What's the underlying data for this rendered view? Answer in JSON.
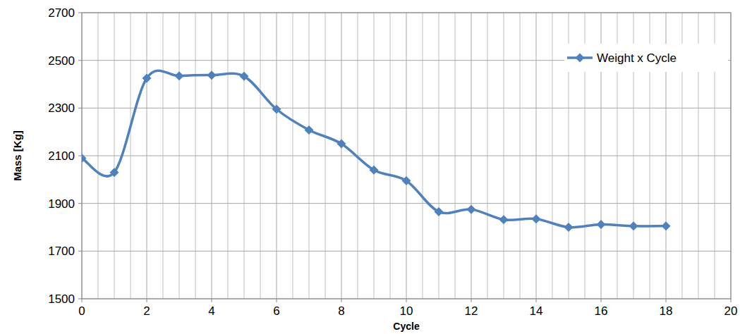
{
  "chart_data": {
    "type": "line",
    "x_label": "Cycle",
    "y_label": "Mass [Kg]",
    "x": [
      0,
      1,
      2,
      3,
      4,
      5,
      6,
      7,
      8,
      9,
      10,
      11,
      12,
      13,
      14,
      15,
      16,
      17,
      18
    ],
    "series": [
      {
        "name": "Weight x Cycle",
        "color": "#4f81bd",
        "marker": "diamond",
        "line_style": "smooth",
        "values": [
          2090,
          2030,
          2425,
          2435,
          2438,
          2433,
          2295,
          2208,
          2150,
          2040,
          1995,
          1865,
          1875,
          1832,
          1835,
          1800,
          1812,
          1805,
          1805
        ]
      }
    ],
    "xlim": [
      0,
      20
    ],
    "xticks": [
      0,
      2,
      4,
      6,
      8,
      10,
      12,
      14,
      16,
      18,
      20
    ],
    "ylim": [
      1500,
      2700
    ],
    "yticks": [
      1500,
      1700,
      1900,
      2100,
      2300,
      2500,
      2700
    ],
    "grid": true,
    "legend": "upper right"
  }
}
